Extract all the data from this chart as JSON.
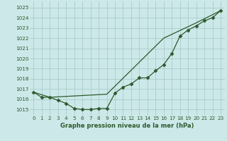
{
  "title": "Graphe pression niveau de la mer (hPa)",
  "bg_color": "#cce8e8",
  "grid_color": "#aacccc",
  "line_color": "#2d5a2d",
  "xlim": [
    -0.5,
    23.5
  ],
  "ylim": [
    1014.4,
    1025.6
  ],
  "yticks": [
    1015,
    1016,
    1017,
    1018,
    1019,
    1020,
    1021,
    1022,
    1023,
    1024,
    1025
  ],
  "xticks": [
    0,
    1,
    2,
    3,
    4,
    5,
    6,
    7,
    8,
    9,
    10,
    11,
    12,
    13,
    14,
    15,
    16,
    17,
    18,
    19,
    20,
    21,
    22,
    23
  ],
  "line1_x": [
    0,
    1,
    2,
    3,
    4,
    5,
    6,
    7,
    8,
    9,
    10,
    11,
    12,
    13,
    14,
    15,
    16,
    17,
    18,
    19,
    20,
    21,
    22,
    23
  ],
  "line1_y": [
    1016.7,
    1016.2,
    1016.2,
    1015.9,
    1015.6,
    1015.1,
    1015.0,
    1015.0,
    1015.1,
    1015.1,
    1016.6,
    1017.2,
    1017.5,
    1018.1,
    1018.1,
    1018.8,
    1019.4,
    1020.5,
    1022.2,
    1022.8,
    1023.2,
    1023.7,
    1024.0,
    1024.7
  ],
  "line2_x": [
    0,
    2,
    9,
    16,
    20,
    23
  ],
  "line2_y": [
    1016.7,
    1016.2,
    1016.5,
    1022.0,
    1023.5,
    1024.7
  ],
  "marker": "D",
  "markersize": 2.5,
  "linewidth": 0.9,
  "tick_fontsize": 5.2,
  "xlabel_fontsize": 6.0
}
